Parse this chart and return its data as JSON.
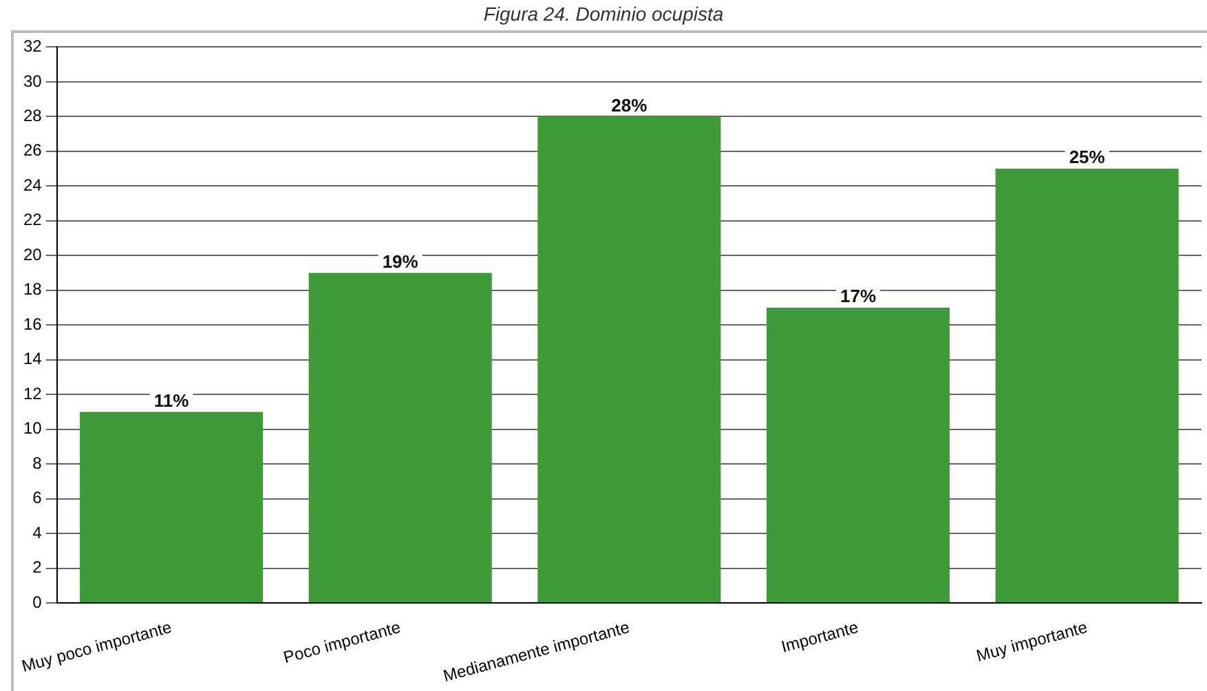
{
  "chart_data": {
    "type": "bar",
    "title": "Figura 24. Dominio ocupista",
    "categories": [
      "Muy poco importante",
      "Poco importante",
      "Medianamente importante",
      "Importante",
      "Muy importante"
    ],
    "values": [
      11,
      19,
      28,
      17,
      25
    ],
    "color": "#3f9a3a",
    "value_labels": [
      "11%",
      "19%",
      "28%",
      "17%",
      "25%"
    ],
    "ylim": [
      0,
      32
    ],
    "yticks": [
      0,
      2,
      4,
      6,
      8,
      10,
      12,
      14,
      16,
      18,
      20,
      22,
      24,
      26,
      28,
      30,
      32
    ],
    "grid": "y"
  }
}
